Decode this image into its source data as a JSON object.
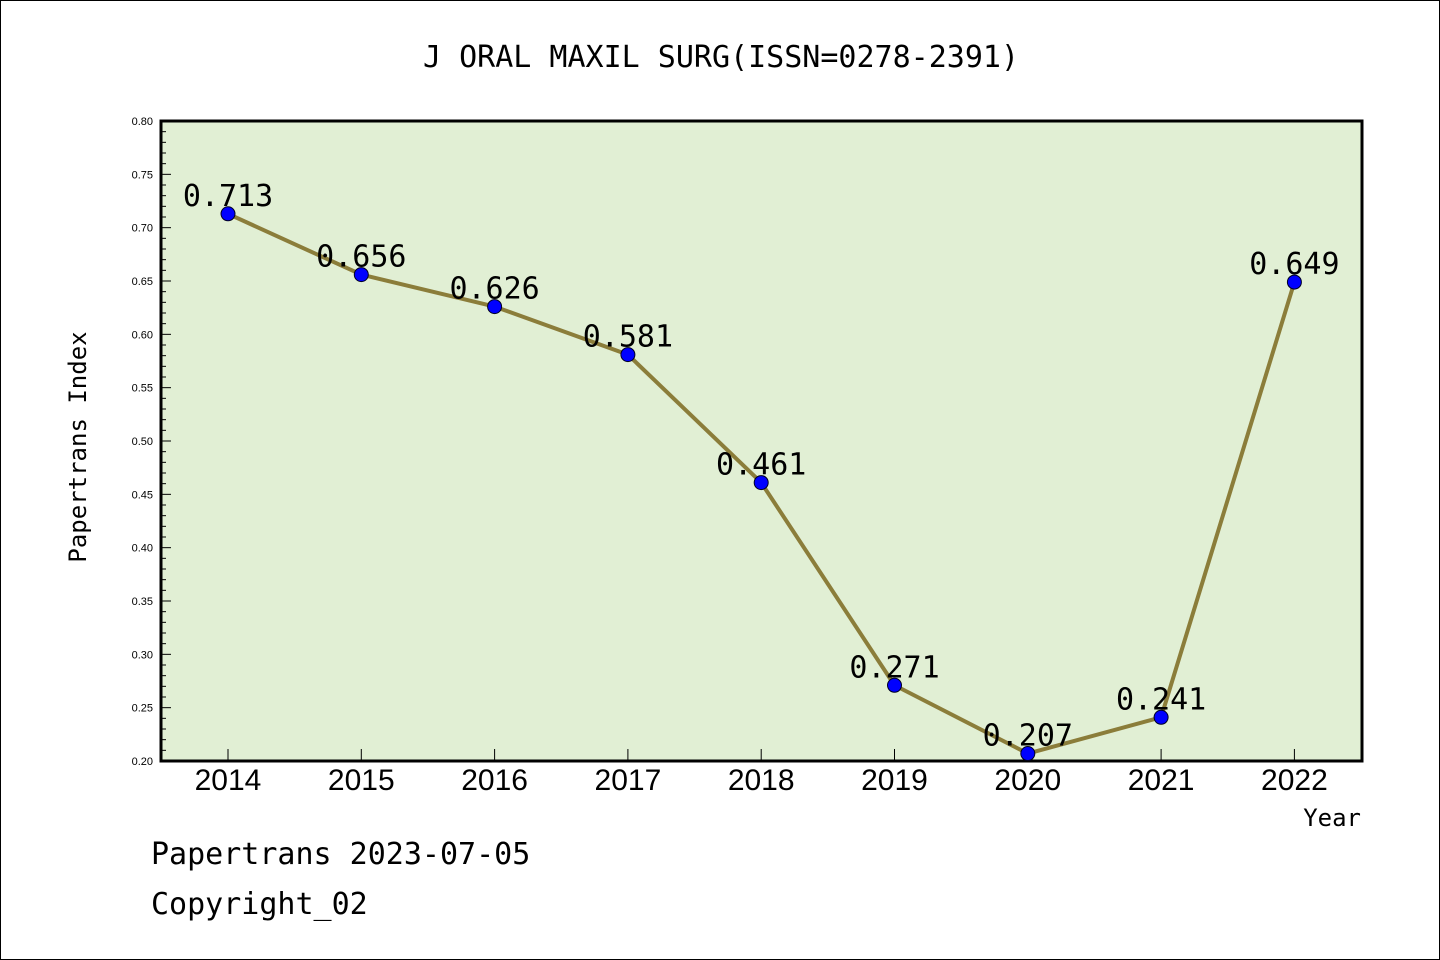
{
  "chart_data": {
    "type": "line",
    "title": "J ORAL MAXIL SURG(ISSN=0278-2391)",
    "xlabel": "Year",
    "ylabel": "Papertrans Index",
    "categories": [
      "2014",
      "2015",
      "2016",
      "2017",
      "2018",
      "2019",
      "2020",
      "2021",
      "2022"
    ],
    "series": [
      {
        "values": [
          0.713,
          0.656,
          0.626,
          0.581,
          0.461,
          0.271,
          0.207,
          0.241,
          0.649
        ],
        "labels": [
          "0.713",
          "0.656",
          "0.626",
          "0.581",
          "0.461",
          "0.271",
          "0.207",
          "0.241",
          "0.649"
        ]
      }
    ],
    "ylim": [
      0.2,
      0.8
    ],
    "yticks": [
      "0.20",
      "0.25",
      "0.30",
      "0.35",
      "0.40",
      "0.45",
      "0.50",
      "0.55",
      "0.60",
      "0.65",
      "0.70",
      "0.75",
      "0.80"
    ],
    "grid": false,
    "colors": {
      "plot_background": "#e1efd4",
      "line": "#8b7d3a",
      "marker": "#0000ff"
    }
  },
  "footer": {
    "line1": "Papertrans 2023-07-05",
    "line2": "Copyright_02"
  }
}
